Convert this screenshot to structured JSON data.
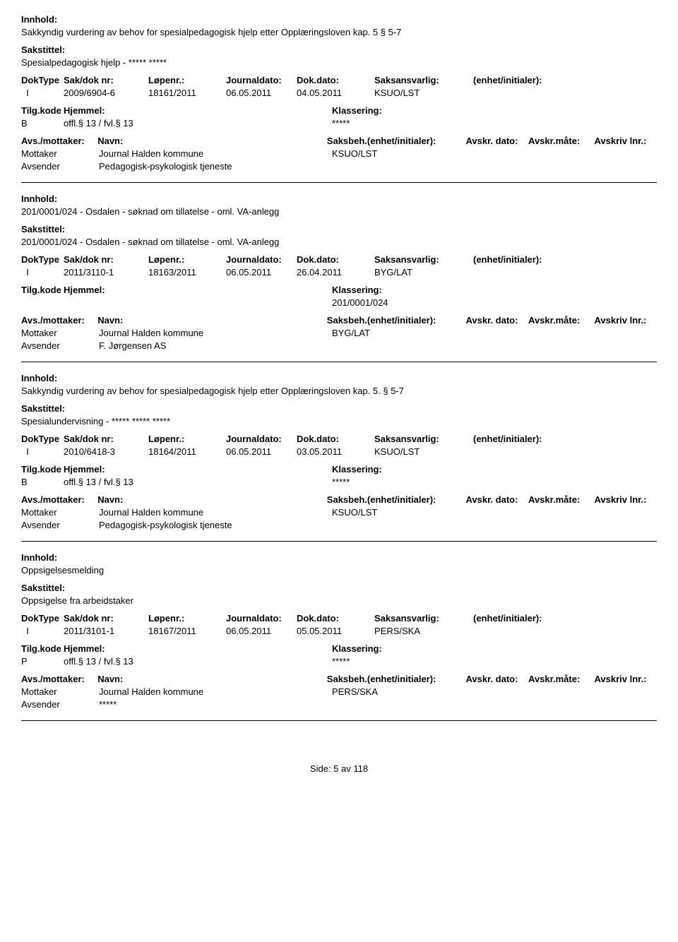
{
  "labels": {
    "innhold": "Innhold:",
    "sakstittel": "Sakstittel:",
    "doktype": "DokType",
    "sakdoknr": "Sak/dok nr:",
    "lopenr": "Løpenr.:",
    "journaldato": "Journaldato:",
    "dokdato": "Dok.dato:",
    "saksansvarlig": "Saksansvarlig:",
    "enhetinitialer": "(enhet/initialer):",
    "tilgkode": "Tilg.kode",
    "hjemmel": "Hjemmel:",
    "klassering": "Klassering:",
    "avsmottaker": "Avs./mottaker:",
    "navn": "Navn:",
    "saksbeh": "Saksbeh.(enhet/initialer):",
    "avskrdato": "Avskr. dato:",
    "avskrmate": "Avskr.måte:",
    "avskrivlnr": "Avskriv lnr.:",
    "mottaker": "Mottaker",
    "avsender": "Avsender"
  },
  "entries": [
    {
      "innhold": "Sakkyndig vurdering av behov for spesialpedagogisk hjelp etter Opplæringsloven kap. 5 § 5-7",
      "sakstittel": "Spesialpedagogisk hjelp - ***** *****",
      "doktype": "I",
      "sakdoknr": "2009/6904-6",
      "lopenr": "18161/2011",
      "journaldato": "06.05.2011",
      "dokdato": "04.05.2011",
      "saksansvarlig": "KSUO/LST",
      "tilgkode": "B",
      "hjemmel": "offl.§ 13 / fvl.§ 13",
      "klassering": "*****",
      "mottaker_navn": "Journal Halden kommune",
      "saksbeh": "KSUO/LST",
      "avsender_navn": "Pedagogisk-psykologisk tjeneste"
    },
    {
      "innhold": "201/0001/024 - Osdalen - søknad om tillatelse - oml. VA-anlegg",
      "sakstittel": "201/0001/024 - Osdalen - søknad om tillatelse - oml. VA-anlegg",
      "doktype": "I",
      "sakdoknr": "2011/3110-1",
      "lopenr": "18163/2011",
      "journaldato": "06.05.2011",
      "dokdato": "26.04.2011",
      "saksansvarlig": "BYG/LAT",
      "tilgkode": "",
      "hjemmel": "",
      "klassering": "201/0001/024",
      "mottaker_navn": "Journal Halden kommune",
      "saksbeh": "BYG/LAT",
      "avsender_navn": "F. Jørgensen AS"
    },
    {
      "innhold": "Sakkyndig vurdering av behov for spesialpedagogisk hjelp etter Opplæringsloven kap. 5. § 5-7",
      "sakstittel": "Spesialundervisning - ***** ***** *****",
      "doktype": "I",
      "sakdoknr": "2010/6418-3",
      "lopenr": "18164/2011",
      "journaldato": "06.05.2011",
      "dokdato": "03.05.2011",
      "saksansvarlig": "KSUO/LST",
      "tilgkode": "B",
      "hjemmel": "offl.§ 13 / fvl.§ 13",
      "klassering": "*****",
      "mottaker_navn": "Journal Halden kommune",
      "saksbeh": "KSUO/LST",
      "avsender_navn": "Pedagogisk-psykologisk tjeneste"
    },
    {
      "innhold": "Oppsigelsesmelding",
      "sakstittel": "Oppsigelse fra arbeidstaker",
      "doktype": "I",
      "sakdoknr": "2011/3101-1",
      "lopenr": "18167/2011",
      "journaldato": "06.05.2011",
      "dokdato": "05.05.2011",
      "saksansvarlig": "PERS/SKA",
      "tilgkode": "P",
      "hjemmel": "offl.§ 13 / fvl.§ 13",
      "klassering": "*****",
      "mottaker_navn": "Journal Halden kommune",
      "saksbeh": "PERS/SKA",
      "avsender_navn": "*****"
    }
  ],
  "footer": "Side: 5 av 118"
}
